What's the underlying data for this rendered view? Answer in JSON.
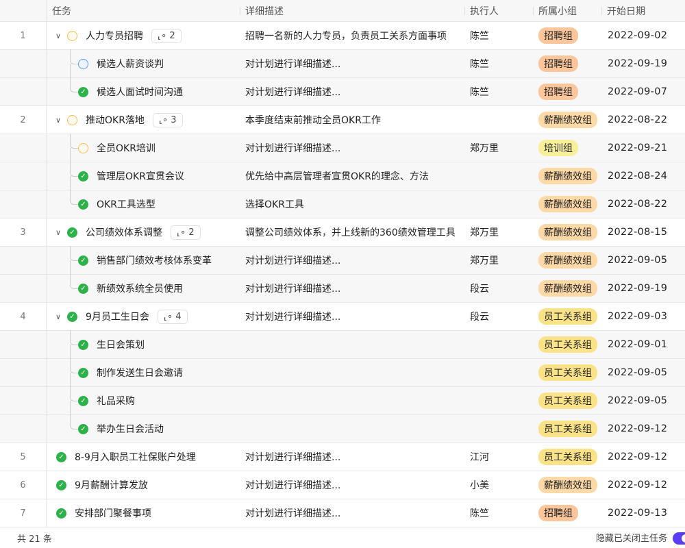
{
  "columns": [
    "任务",
    "详细描述",
    "执行人",
    "所属小组",
    "开始日期"
  ],
  "group_colors": {
    "招聘组": "#fcc69c",
    "薪酬绩效组": "#fcd9a6",
    "培训组": "#f8ef9a",
    "员工关系组": "#fae288"
  },
  "rows": [
    {
      "index": "1",
      "parent": true,
      "expanded": true,
      "status": "pending",
      "task": "人力专员招聘",
      "subcount": "2",
      "desc": "招聘一名新的人力专员，负责员工关系方面事项",
      "owner": "陈竺",
      "group": "招聘组",
      "date": "2022-09-02"
    },
    {
      "child": true,
      "last": false,
      "status": "progress",
      "task": "候选人薪资谈判",
      "desc": "对计划进行详细描述...",
      "owner": "陈竺",
      "group": "招聘组",
      "date": "2022-09-19"
    },
    {
      "child": true,
      "last": true,
      "status": "done",
      "task": "候选人面试时间沟通",
      "desc": "对计划进行详细描述...",
      "owner": "陈竺",
      "group": "招聘组",
      "date": "2022-09-07"
    },
    {
      "index": "2",
      "parent": true,
      "expanded": true,
      "status": "pending",
      "task": "推动OKR落地",
      "subcount": "3",
      "desc": "本季度结束前推动全员OKR工作",
      "owner": "",
      "group": "薪酬绩效组",
      "date": "2022-08-22"
    },
    {
      "child": true,
      "last": false,
      "status": "pending",
      "task": "全员OKR培训",
      "desc": "对计划进行详细描述...",
      "owner": "郑万里",
      "group": "培训组",
      "date": "2022-09-21"
    },
    {
      "child": true,
      "last": false,
      "status": "done",
      "task": "管理层OKR宣贯会议",
      "desc": "优先给中高层管理者宣贯OKR的理念、方法",
      "owner": "",
      "group": "薪酬绩效组",
      "date": "2022-08-24"
    },
    {
      "child": true,
      "last": true,
      "status": "done",
      "task": "OKR工具选型",
      "desc": "选择OKR工具",
      "owner": "",
      "group": "薪酬绩效组",
      "date": "2022-08-22"
    },
    {
      "index": "3",
      "parent": true,
      "expanded": true,
      "status": "done",
      "task": "公司绩效体系调整",
      "subcount": "2",
      "desc": "调整公司绩效体系，并上线新的360绩效管理工具",
      "owner": "郑万里",
      "group": "薪酬绩效组",
      "date": "2022-08-15"
    },
    {
      "child": true,
      "last": false,
      "status": "done",
      "task": "销售部门绩效考核体系变革",
      "desc": "对计划进行详细描述...",
      "owner": "郑万里",
      "group": "薪酬绩效组",
      "date": "2022-09-05"
    },
    {
      "child": true,
      "last": true,
      "status": "done",
      "task": "新绩效系统全员使用",
      "desc": "对计划进行详细描述...",
      "owner": "段云",
      "group": "薪酬绩效组",
      "date": "2022-09-19"
    },
    {
      "index": "4",
      "parent": true,
      "expanded": true,
      "status": "done",
      "task": "9月员工生日会",
      "subcount": "4",
      "desc": "对计划进行详细描述...",
      "owner": "段云",
      "group": "员工关系组",
      "date": "2022-09-03"
    },
    {
      "child": true,
      "last": false,
      "status": "done",
      "task": "生日会策划",
      "desc": "",
      "owner": "",
      "group": "员工关系组",
      "date": "2022-09-01"
    },
    {
      "child": true,
      "last": false,
      "status": "done",
      "task": "制作发送生日会邀请",
      "desc": "",
      "owner": "",
      "group": "员工关系组",
      "date": "2022-09-05"
    },
    {
      "child": true,
      "last": false,
      "status": "done",
      "task": "礼品采购",
      "desc": "",
      "owner": "",
      "group": "员工关系组",
      "date": "2022-09-05"
    },
    {
      "child": true,
      "last": true,
      "status": "done",
      "task": "举办生日会活动",
      "desc": "",
      "owner": "",
      "group": "员工关系组",
      "date": "2022-09-12"
    },
    {
      "index": "5",
      "parent": false,
      "status": "done",
      "task": "8-9月入职员工社保账户处理",
      "desc": "对计划进行详细描述...",
      "owner": "江河",
      "group": "员工关系组",
      "date": "2022-09-12"
    },
    {
      "index": "6",
      "parent": false,
      "status": "done",
      "task": "9月薪酬计算发放",
      "desc": "对计划进行详细描述...",
      "owner": "小美",
      "group": "薪酬绩效组",
      "date": "2022-09-12"
    },
    {
      "index": "7",
      "parent": false,
      "status": "done",
      "task": "安排部门聚餐事项",
      "desc": "对计划进行详细描述...",
      "owner": "陈竺",
      "group": "招聘组",
      "date": "2022-09-13"
    }
  ],
  "footer": {
    "total": "共 21 条",
    "hide_closed_label": "隐藏已关闭主任务",
    "hide_closed_on": true
  }
}
